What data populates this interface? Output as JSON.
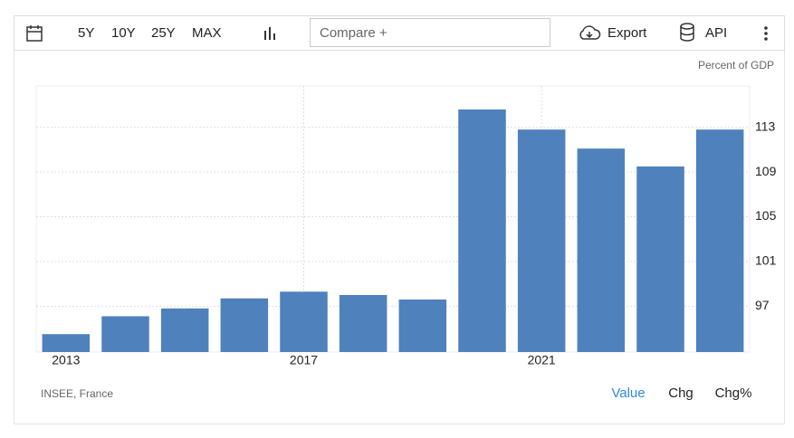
{
  "toolbar": {
    "ranges": [
      "5Y",
      "10Y",
      "25Y",
      "MAX"
    ],
    "compare": "Compare +",
    "export": "Export",
    "api": "API"
  },
  "chart_data": {
    "type": "bar",
    "unit_label": "Percent of GDP",
    "source": "INSEE, France",
    "categories": [
      "2013",
      null,
      null,
      null,
      "2017",
      null,
      null,
      null,
      "2021",
      null,
      null,
      null
    ],
    "values": [
      94.5,
      96.1,
      96.8,
      97.7,
      98.3,
      98.0,
      97.6,
      114.6,
      112.8,
      111.1,
      109.5,
      112.8
    ],
    "color": "#4f81bd",
    "ylim": [
      92.9,
      116.7
    ],
    "yticks": [
      97,
      101,
      105,
      109,
      113
    ],
    "grid": true
  },
  "tabs": [
    "Value",
    "Chg",
    "Chg%"
  ]
}
